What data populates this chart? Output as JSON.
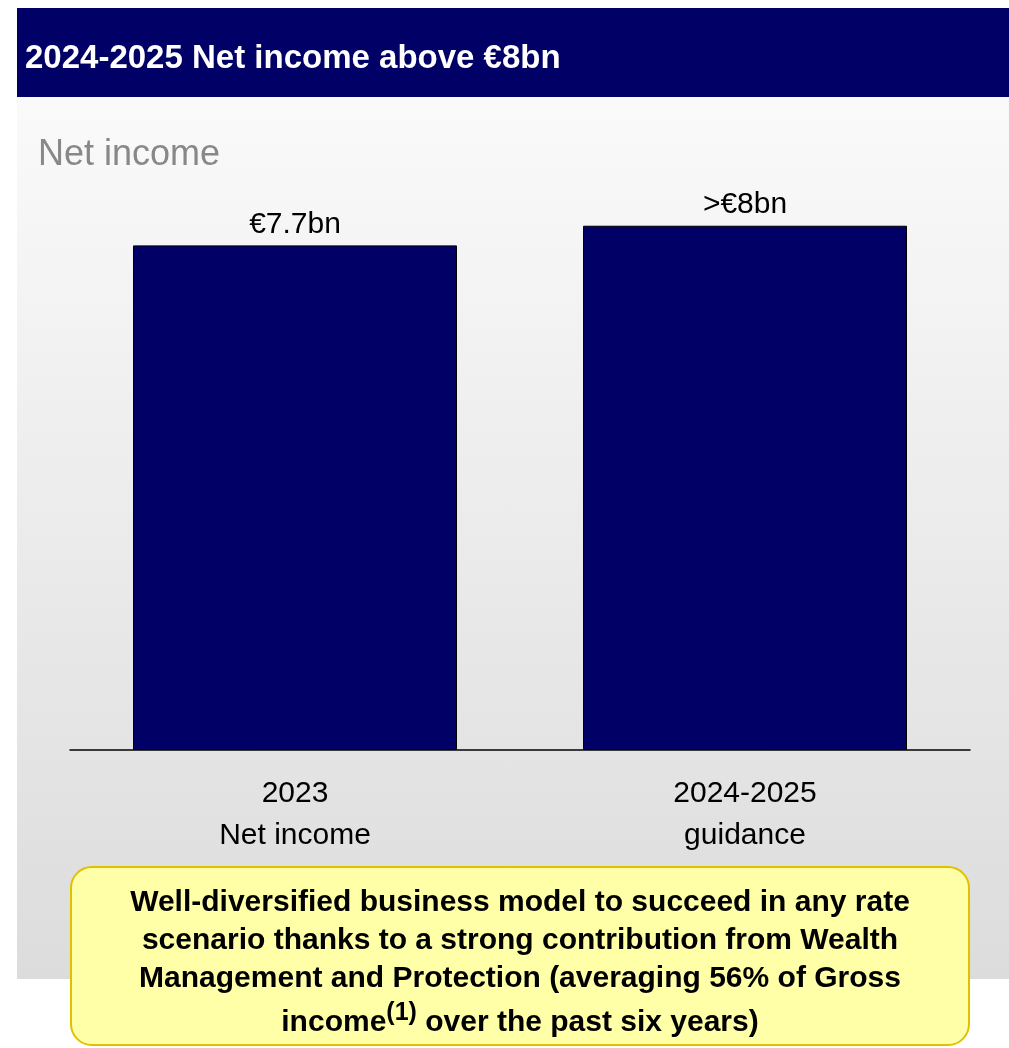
{
  "chart_data": {
    "type": "bar",
    "title": "2024-2025 Net income above €8bn",
    "subtitle": "Net income",
    "categories": [
      "2023\nNet income",
      "2024-2025\nguidance"
    ],
    "values": [
      7.7,
      8
    ],
    "color": "#000066",
    "value_labels": [
      "€7.7bn",
      ">€8bn"
    ],
    "annotations": [
      "Well-diversified business model to succeed in any rate scenario thanks to a strong contribution from Wealth Management and Protection (averaging 56% of Gross income$^{(1)}$ over the past six years)"
    ]
  }
}
